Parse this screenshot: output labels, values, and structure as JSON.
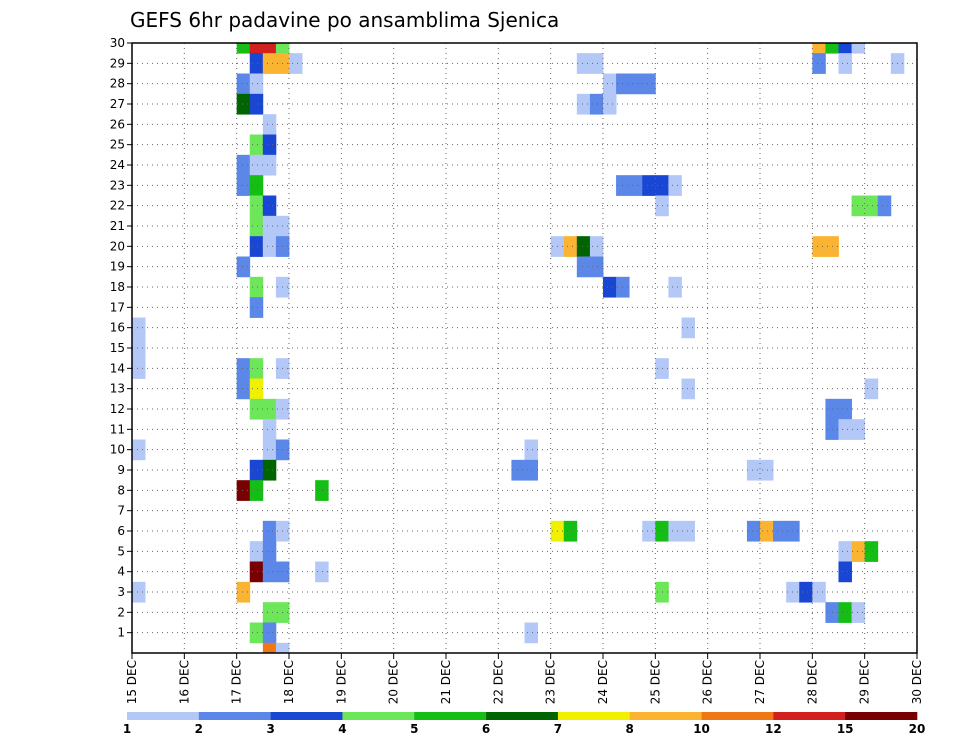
{
  "chart_data": {
    "type": "heatmap",
    "title": "GEFS 6hr padavine po ansamblima Sjenica",
    "x_tick_labels": [
      "15 DEC",
      "16 DEC",
      "17 DEC",
      "18 DEC",
      "19 DEC",
      "20 DEC",
      "21 DEC",
      "22 DEC",
      "23 DEC",
      "24 DEC",
      "25 DEC",
      "26 DEC",
      "27 DEC",
      "28 DEC",
      "29 DEC",
      "30 DEC"
    ],
    "y_tick_labels": [
      "1",
      "2",
      "3",
      "4",
      "5",
      "6",
      "7",
      "8",
      "9",
      "10",
      "11",
      "12",
      "13",
      "14",
      "15",
      "16",
      "17",
      "18",
      "19",
      "20",
      "21",
      "22",
      "23",
      "24",
      "25",
      "26",
      "27",
      "28",
      "29",
      "30"
    ],
    "xlim_days": [
      15,
      30
    ],
    "ylim": [
      0,
      30
    ],
    "time_step_hours": 6,
    "grid": true,
    "legend_placement": "bottom",
    "colorbar": {
      "labels": [
        "1",
        "2",
        "3",
        "4",
        "5",
        "6",
        "7",
        "8",
        "10",
        "12",
        "15",
        "20"
      ],
      "colors": [
        "#b4c8f8",
        "#5a87e8",
        "#1a46d4",
        "#6ee65a",
        "#14be14",
        "#006400",
        "#f0f000",
        "#fab432",
        "#f07814",
        "#d22020",
        "#780000"
      ]
    },
    "cells": [
      {
        "member": 30,
        "day": 17.0,
        "level": 5
      },
      {
        "member": 30,
        "day": 17.25,
        "level": 10
      },
      {
        "member": 30,
        "day": 17.5,
        "level": 10
      },
      {
        "member": 30,
        "day": 17.75,
        "level": 4
      },
      {
        "member": 30,
        "day": 28.0,
        "level": 8
      },
      {
        "member": 30,
        "day": 28.25,
        "level": 5
      },
      {
        "member": 30,
        "day": 28.5,
        "level": 3
      },
      {
        "member": 30,
        "day": 28.75,
        "level": 1
      },
      {
        "member": 29,
        "day": 17.25,
        "level": 3
      },
      {
        "member": 29,
        "day": 17.5,
        "level": 8
      },
      {
        "member": 29,
        "day": 17.75,
        "level": 8
      },
      {
        "member": 29,
        "day": 18.0,
        "level": 1
      },
      {
        "member": 29,
        "day": 23.5,
        "level": 1
      },
      {
        "member": 29,
        "day": 23.75,
        "level": 1
      },
      {
        "member": 29,
        "day": 28.0,
        "level": 2
      },
      {
        "member": 29,
        "day": 28.5,
        "level": 1
      },
      {
        "member": 29,
        "day": 29.5,
        "level": 1
      },
      {
        "member": 28,
        "day": 17.0,
        "level": 2
      },
      {
        "member": 28,
        "day": 17.25,
        "level": 1
      },
      {
        "member": 28,
        "day": 24.0,
        "level": 1
      },
      {
        "member": 28,
        "day": 24.25,
        "level": 2
      },
      {
        "member": 28,
        "day": 24.5,
        "level": 2
      },
      {
        "member": 28,
        "day": 24.75,
        "level": 2
      },
      {
        "member": 27,
        "day": 17.0,
        "level": 6
      },
      {
        "member": 27,
        "day": 17.25,
        "level": 3
      },
      {
        "member": 27,
        "day": 23.5,
        "level": 1
      },
      {
        "member": 27,
        "day": 23.75,
        "level": 2
      },
      {
        "member": 27,
        "day": 24.0,
        "level": 1
      },
      {
        "member": 26,
        "day": 17.5,
        "level": 1
      },
      {
        "member": 25,
        "day": 17.25,
        "level": 4
      },
      {
        "member": 25,
        "day": 17.5,
        "level": 3
      },
      {
        "member": 24,
        "day": 17.0,
        "level": 2
      },
      {
        "member": 24,
        "day": 17.25,
        "level": 1
      },
      {
        "member": 24,
        "day": 17.5,
        "level": 1
      },
      {
        "member": 23,
        "day": 17.0,
        "level": 2
      },
      {
        "member": 23,
        "day": 17.25,
        "level": 5
      },
      {
        "member": 23,
        "day": 24.25,
        "level": 2
      },
      {
        "member": 23,
        "day": 24.5,
        "level": 2
      },
      {
        "member": 23,
        "day": 24.75,
        "level": 3
      },
      {
        "member": 23,
        "day": 25.0,
        "level": 3
      },
      {
        "member": 23,
        "day": 25.25,
        "level": 1
      },
      {
        "member": 22,
        "day": 17.25,
        "level": 4
      },
      {
        "member": 22,
        "day": 17.5,
        "level": 3
      },
      {
        "member": 22,
        "day": 25.0,
        "level": 1
      },
      {
        "member": 22,
        "day": 28.75,
        "level": 4
      },
      {
        "member": 22,
        "day": 29.0,
        "level": 4
      },
      {
        "member": 22,
        "day": 29.25,
        "level": 2
      },
      {
        "member": 21,
        "day": 17.25,
        "level": 4
      },
      {
        "member": 21,
        "day": 17.5,
        "level": 1
      },
      {
        "member": 21,
        "day": 17.75,
        "level": 1
      },
      {
        "member": 20,
        "day": 17.25,
        "level": 3
      },
      {
        "member": 20,
        "day": 17.5,
        "level": 1
      },
      {
        "member": 20,
        "day": 17.75,
        "level": 2
      },
      {
        "member": 20,
        "day": 23.0,
        "level": 1
      },
      {
        "member": 20,
        "day": 23.25,
        "level": 8
      },
      {
        "member": 20,
        "day": 23.5,
        "level": 6
      },
      {
        "member": 20,
        "day": 23.75,
        "level": 1
      },
      {
        "member": 20,
        "day": 28.0,
        "level": 8
      },
      {
        "member": 20,
        "day": 28.25,
        "level": 8
      },
      {
        "member": 19,
        "day": 17.0,
        "level": 2
      },
      {
        "member": 19,
        "day": 23.5,
        "level": 2
      },
      {
        "member": 19,
        "day": 23.75,
        "level": 2
      },
      {
        "member": 18,
        "day": 17.25,
        "level": 4
      },
      {
        "member": 18,
        "day": 17.75,
        "level": 1
      },
      {
        "member": 18,
        "day": 24.0,
        "level": 3
      },
      {
        "member": 18,
        "day": 24.25,
        "level": 2
      },
      {
        "member": 18,
        "day": 25.25,
        "level": 1
      },
      {
        "member": 17,
        "day": 17.25,
        "level": 2
      },
      {
        "member": 16,
        "day": 15.0,
        "level": 1
      },
      {
        "member": 16,
        "day": 25.5,
        "level": 1
      },
      {
        "member": 15,
        "day": 15.0,
        "level": 1
      },
      {
        "member": 14,
        "day": 15.0,
        "level": 1
      },
      {
        "member": 14,
        "day": 17.0,
        "level": 2
      },
      {
        "member": 14,
        "day": 17.25,
        "level": 4
      },
      {
        "member": 14,
        "day": 17.75,
        "level": 1
      },
      {
        "member": 14,
        "day": 25.0,
        "level": 1
      },
      {
        "member": 13,
        "day": 17.0,
        "level": 2
      },
      {
        "member": 13,
        "day": 17.25,
        "level": 7
      },
      {
        "member": 13,
        "day": 25.5,
        "level": 1
      },
      {
        "member": 13,
        "day": 29.0,
        "level": 1
      },
      {
        "member": 12,
        "day": 17.25,
        "level": 4
      },
      {
        "member": 12,
        "day": 17.5,
        "level": 4
      },
      {
        "member": 12,
        "day": 17.75,
        "level": 1
      },
      {
        "member": 12,
        "day": 28.25,
        "level": 2
      },
      {
        "member": 12,
        "day": 28.5,
        "level": 2
      },
      {
        "member": 11,
        "day": 17.5,
        "level": 1
      },
      {
        "member": 11,
        "day": 28.25,
        "level": 2
      },
      {
        "member": 11,
        "day": 28.5,
        "level": 1
      },
      {
        "member": 11,
        "day": 28.75,
        "level": 1
      },
      {
        "member": 10,
        "day": 15.0,
        "level": 1
      },
      {
        "member": 10,
        "day": 17.5,
        "level": 1
      },
      {
        "member": 10,
        "day": 17.75,
        "level": 2
      },
      {
        "member": 10,
        "day": 22.5,
        "level": 1
      },
      {
        "member": 9,
        "day": 17.25,
        "level": 3
      },
      {
        "member": 9,
        "day": 17.5,
        "level": 6
      },
      {
        "member": 9,
        "day": 22.25,
        "level": 2
      },
      {
        "member": 9,
        "day": 22.5,
        "level": 2
      },
      {
        "member": 9,
        "day": 26.75,
        "level": 1
      },
      {
        "member": 9,
        "day": 27.0,
        "level": 1
      },
      {
        "member": 8,
        "day": 17.0,
        "level": 11
      },
      {
        "member": 8,
        "day": 17.25,
        "level": 5
      },
      {
        "member": 8,
        "day": 18.5,
        "level": 5
      },
      {
        "member": 6,
        "day": 17.5,
        "level": 2
      },
      {
        "member": 6,
        "day": 17.75,
        "level": 1
      },
      {
        "member": 6,
        "day": 23.0,
        "level": 7
      },
      {
        "member": 6,
        "day": 23.25,
        "level": 5
      },
      {
        "member": 6,
        "day": 24.75,
        "level": 1
      },
      {
        "member": 6,
        "day": 25.0,
        "level": 5
      },
      {
        "member": 6,
        "day": 25.25,
        "level": 1
      },
      {
        "member": 6,
        "day": 25.5,
        "level": 1
      },
      {
        "member": 6,
        "day": 26.75,
        "level": 2
      },
      {
        "member": 6,
        "day": 27.0,
        "level": 8
      },
      {
        "member": 6,
        "day": 27.25,
        "level": 2
      },
      {
        "member": 6,
        "day": 27.5,
        "level": 2
      },
      {
        "member": 5,
        "day": 17.25,
        "level": 1
      },
      {
        "member": 5,
        "day": 17.5,
        "level": 2
      },
      {
        "member": 5,
        "day": 28.5,
        "level": 1
      },
      {
        "member": 5,
        "day": 28.75,
        "level": 8
      },
      {
        "member": 5,
        "day": 29.0,
        "level": 5
      },
      {
        "member": 4,
        "day": 17.25,
        "level": 11
      },
      {
        "member": 4,
        "day": 17.5,
        "level": 2
      },
      {
        "member": 4,
        "day": 17.75,
        "level": 2
      },
      {
        "member": 4,
        "day": 18.5,
        "level": 1
      },
      {
        "member": 4,
        "day": 28.5,
        "level": 3
      },
      {
        "member": 3,
        "day": 15.0,
        "level": 1
      },
      {
        "member": 3,
        "day": 17.0,
        "level": 8
      },
      {
        "member": 3,
        "day": 25.0,
        "level": 4
      },
      {
        "member": 3,
        "day": 27.5,
        "level": 1
      },
      {
        "member": 3,
        "day": 27.75,
        "level": 3
      },
      {
        "member": 3,
        "day": 28.0,
        "level": 1
      },
      {
        "member": 2,
        "day": 17.5,
        "level": 4
      },
      {
        "member": 2,
        "day": 17.75,
        "level": 4
      },
      {
        "member": 2,
        "day": 28.25,
        "level": 2
      },
      {
        "member": 2,
        "day": 28.5,
        "level": 5
      },
      {
        "member": 2,
        "day": 28.75,
        "level": 1
      },
      {
        "member": 1,
        "day": 17.25,
        "level": 4
      },
      {
        "member": 1,
        "day": 17.5,
        "level": 2
      },
      {
        "member": 1,
        "day": 22.5,
        "level": 1
      },
      {
        "member": 0,
        "day": 17.5,
        "level": 9
      },
      {
        "member": 0,
        "day": 17.75,
        "level": 1
      }
    ]
  }
}
